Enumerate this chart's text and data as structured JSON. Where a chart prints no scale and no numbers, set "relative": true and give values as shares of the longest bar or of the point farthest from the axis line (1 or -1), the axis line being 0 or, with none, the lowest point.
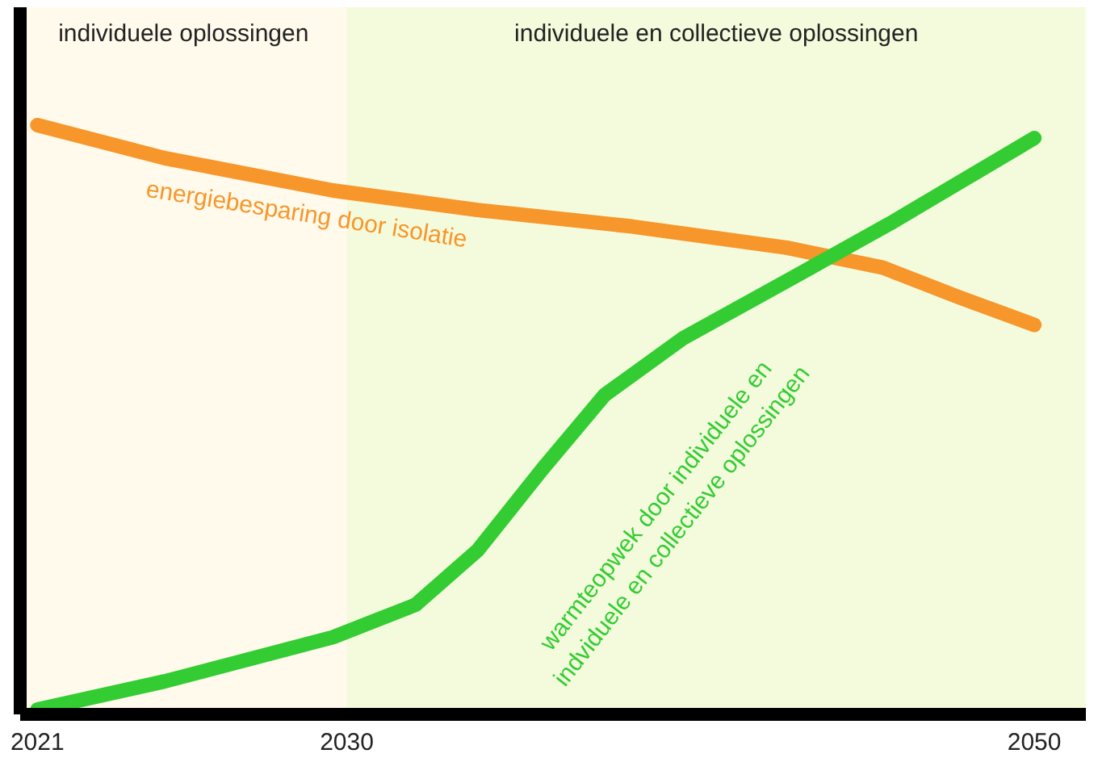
{
  "chart_data": {
    "type": "line",
    "relative": true,
    "x": [
      2021,
      2024.7,
      2029.6,
      2033.8,
      2038.3,
      2042.8,
      2045.6,
      2047.8,
      2050
    ],
    "series": [
      {
        "name": "energiebesparing door isolatie",
        "color": "#f7962b",
        "values": [
          1.0,
          0.944,
          0.889,
          0.856,
          0.828,
          0.792,
          0.758,
          0.708,
          0.661
        ]
      },
      {
        "name": "warmteopwek door individuele en indviduele en collectieve oplossingen",
        "color": "#33cc33",
        "x": [
          2021,
          2024.7,
          2029.6,
          2032,
          2033.8,
          2035.7,
          2037.5,
          2039.8,
          2043,
          2045.8,
          2050
        ],
        "values": [
          0.008,
          0.056,
          0.131,
          0.186,
          0.278,
          0.417,
          0.542,
          0.639,
          0.742,
          0.833,
          0.978
        ]
      }
    ],
    "xlim": [
      2020.5,
      2051.5
    ],
    "xticks": [
      2021,
      2030,
      2050
    ],
    "tick_labels": "x",
    "grid": false,
    "marker": "none",
    "line_style": "solid",
    "bands": [
      {
        "axis": "x",
        "from": 2020.5,
        "to": 2030,
        "label": "individuele oplossingen",
        "color": "#fffaeb"
      },
      {
        "axis": "x",
        "from": 2030,
        "to": 2051.5,
        "label": "individuele en collectieve oplossingen",
        "color": "#f4fbdc"
      }
    ]
  }
}
